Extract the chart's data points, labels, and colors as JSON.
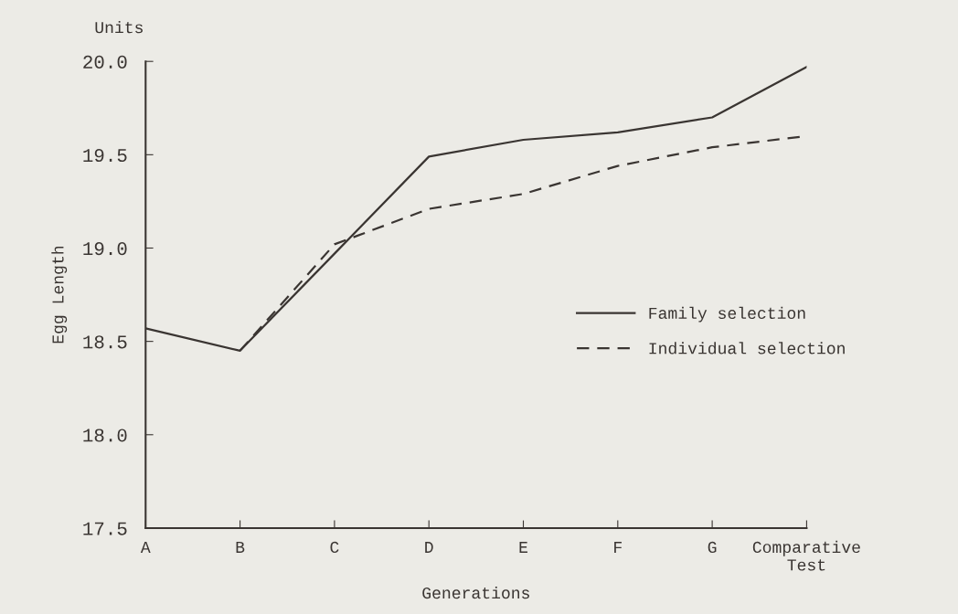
{
  "chart_data": {
    "type": "line",
    "xlabel": "Generations",
    "ylabel": "Egg Length",
    "annotations": [
      "Units"
    ],
    "categories": [
      "A",
      "B",
      "C",
      "D",
      "E",
      "F",
      "G",
      "Comparative\nTest"
    ],
    "series": [
      {
        "name": "Family selection",
        "color": "#3a3532",
        "line_style": "solid",
        "values": [
          18.57,
          18.45,
          18.97,
          19.49,
          19.58,
          19.62,
          19.7,
          19.97
        ]
      },
      {
        "name": "Individual selection",
        "color": "#3a3532",
        "line_style": "dashed",
        "values": [
          null,
          18.45,
          19.02,
          19.21,
          19.29,
          19.44,
          19.54,
          19.6
        ]
      }
    ],
    "ylim": [
      17.5,
      20.0
    ],
    "yticks": [
      {
        "value": 17.5,
        "label": "17.5"
      },
      {
        "value": 18.0,
        "label": "18.0"
      },
      {
        "value": 18.5,
        "label": "18.5"
      },
      {
        "value": 19.0,
        "label": "19.0"
      },
      {
        "value": 19.5,
        "label": "19.5"
      },
      {
        "value": 20.0,
        "label": "20.0"
      }
    ],
    "grid": false,
    "legend": "right",
    "marker": "none"
  }
}
